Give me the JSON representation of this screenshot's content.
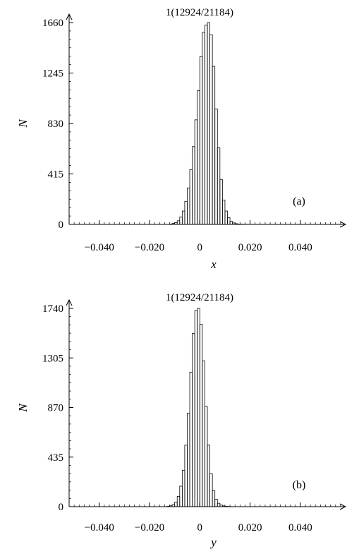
{
  "chart_data": [
    {
      "type": "histogram",
      "panel_label": "(a)",
      "title": "1(12924/21184)",
      "xlabel": "x",
      "ylabel": "N",
      "xlim": [
        -0.052,
        0.058
      ],
      "ylim": [
        0,
        1660
      ],
      "xticks": [
        -0.04,
        -0.02,
        0,
        0.02,
        0.04
      ],
      "xtick_labels": [
        "−0.040",
        "−0.020",
        "0",
        "0.020",
        "0.040"
      ],
      "yticks": [
        0,
        415,
        830,
        1245,
        1660
      ],
      "ytick_labels": [
        "0",
        "415",
        "830",
        "1245",
        "1660"
      ],
      "bin_width": 0.001,
      "bin_start": -0.012,
      "counts": [
        3,
        8,
        15,
        30,
        60,
        110,
        190,
        300,
        450,
        640,
        860,
        1100,
        1380,
        1580,
        1640,
        1660,
        1560,
        1300,
        950,
        630,
        370,
        200,
        110,
        55,
        25,
        12,
        6,
        3,
        2,
        1,
        1
      ]
    },
    {
      "type": "histogram",
      "panel_label": "(b)",
      "title": "1(12924/21184)",
      "xlabel": "y",
      "ylabel": "N",
      "xlim": [
        -0.052,
        0.058
      ],
      "ylim": [
        0,
        1740
      ],
      "xticks": [
        -0.04,
        -0.02,
        0,
        0.02,
        0.04
      ],
      "xtick_labels": [
        "−0.040",
        "−0.020",
        "0",
        "0.020",
        "0.040"
      ],
      "yticks": [
        0,
        435,
        870,
        1305,
        1740
      ],
      "ytick_labels": [
        "0",
        "435",
        "870",
        "1305",
        "1740"
      ],
      "bin_width": 0.001,
      "bin_start": -0.013,
      "counts": [
        3,
        8,
        18,
        40,
        90,
        180,
        320,
        540,
        820,
        1180,
        1520,
        1720,
        1740,
        1600,
        1280,
        880,
        540,
        290,
        140,
        65,
        30,
        14,
        7,
        3,
        2,
        1
      ]
    }
  ]
}
